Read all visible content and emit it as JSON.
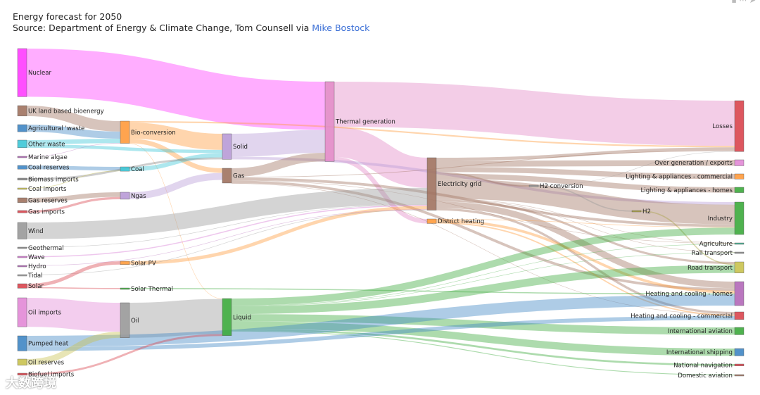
{
  "header": {
    "title": "Energy forecast for 2050",
    "subtitle_prefix": "Source: Department of Energy & Climate Change, Tom Counsell via ",
    "subtitle_link": "Mike Bostock"
  },
  "watermark": "大数跨境",
  "chart_data": {
    "type": "sankey",
    "title": "Energy forecast for 2050",
    "nodes": [
      {
        "name": "Nuclear",
        "color": "#ff3cff"
      },
      {
        "name": "UK land based bioenergy",
        "color": "#a0725f"
      },
      {
        "name": "Agricultural 'waste",
        "color": "#3f86c4"
      },
      {
        "name": "Other waste",
        "color": "#3cc6d6"
      },
      {
        "name": "Marine algae",
        "color": "#b268b8"
      },
      {
        "name": "Coal reserves",
        "color": "#3f86c4"
      },
      {
        "name": "Biomass imports",
        "color": "#888888"
      },
      {
        "name": "Coal imports",
        "color": "#c9c24f"
      },
      {
        "name": "Gas reserves",
        "color": "#a0725f"
      },
      {
        "name": "Gas imports",
        "color": "#d9454e"
      },
      {
        "name": "Wind",
        "color": "#999999"
      },
      {
        "name": "Geothermal",
        "color": "#888888"
      },
      {
        "name": "Wave",
        "color": "#d67ad4"
      },
      {
        "name": "Hydro",
        "color": "#b268b8"
      },
      {
        "name": "Tidal",
        "color": "#999999"
      },
      {
        "name": "Solar",
        "color": "#d9454e"
      },
      {
        "name": "Oil imports",
        "color": "#e288d6"
      },
      {
        "name": "Pumped heat",
        "color": "#3f86c4"
      },
      {
        "name": "Oil reserves",
        "color": "#c9c24f"
      },
      {
        "name": "Biofuel imports",
        "color": "#d9454e"
      },
      {
        "name": "Bio-conversion",
        "color": "#ff9a3c"
      },
      {
        "name": "Coal",
        "color": "#3cc6d6"
      },
      {
        "name": "Ngas",
        "color": "#b89ad6"
      },
      {
        "name": "Solar PV",
        "color": "#ff9a3c"
      },
      {
        "name": "Solar Thermal",
        "color": "#3caa3c"
      },
      {
        "name": "Oil",
        "color": "#999999"
      },
      {
        "name": "Solid",
        "color": "#b89ad6"
      },
      {
        "name": "Gas",
        "color": "#a0725f"
      },
      {
        "name": "Liquid",
        "color": "#3caa3c"
      },
      {
        "name": "Thermal generation",
        "color": "#e288c6"
      },
      {
        "name": "Electricity grid",
        "color": "#a0725f"
      },
      {
        "name": "District heating",
        "color": "#ff9a3c"
      },
      {
        "name": "H2 conversion",
        "color": "#999999"
      },
      {
        "name": "H2",
        "color": "#a8a040"
      },
      {
        "name": "Losses",
        "color": "#d9454e"
      },
      {
        "name": "Over generation / exports",
        "color": "#e288d6"
      },
      {
        "name": "Lighting & appliances - commercial",
        "color": "#ff9a3c"
      },
      {
        "name": "Lighting & appliances - homes",
        "color": "#3caa3c"
      },
      {
        "name": "Industry",
        "color": "#3caa3c"
      },
      {
        "name": "Agriculture",
        "color": "#3caa8a"
      },
      {
        "name": "Rail transport",
        "color": "#888888"
      },
      {
        "name": "Road transport",
        "color": "#c9c24f"
      },
      {
        "name": "Heating and cooling - homes",
        "color": "#b268b8"
      },
      {
        "name": "Heating and cooling - commercial",
        "color": "#d9454e"
      },
      {
        "name": "International aviation",
        "color": "#3caa3c"
      },
      {
        "name": "International shipping",
        "color": "#3f86c4"
      },
      {
        "name": "National navigation",
        "color": "#d9454e"
      },
      {
        "name": "Domestic aviation",
        "color": "#a0725f"
      }
    ],
    "links": [
      {
        "source": "Nuclear",
        "target": "Thermal generation",
        "value": 839
      },
      {
        "source": "UK land based bioenergy",
        "target": "Bio-conversion",
        "value": 182
      },
      {
        "source": "Agricultural 'waste",
        "target": "Bio-conversion",
        "value": 124
      },
      {
        "source": "Other waste",
        "target": "Bio-conversion",
        "value": 77
      },
      {
        "source": "Other waste",
        "target": "Solid",
        "value": 56
      },
      {
        "source": "Marine algae",
        "target": "Bio-conversion",
        "value": 4
      },
      {
        "source": "Coal reserves",
        "target": "Coal",
        "value": 64
      },
      {
        "source": "Biomass imports",
        "target": "Solid",
        "value": 35
      },
      {
        "source": "Coal imports",
        "target": "Coal",
        "value": 11
      },
      {
        "source": "Gas reserves",
        "target": "Ngas",
        "value": 82
      },
      {
        "source": "Gas imports",
        "target": "Ngas",
        "value": 40
      },
      {
        "source": "Wind",
        "target": "Electricity grid",
        "value": 289
      },
      {
        "source": "Geothermal",
        "target": "Electricity grid",
        "value": 7
      },
      {
        "source": "Wave",
        "target": "Electricity grid",
        "value": 19
      },
      {
        "source": "Hydro",
        "target": "Electricity grid",
        "value": 6
      },
      {
        "source": "Tidal",
        "target": "Electricity grid",
        "value": 9
      },
      {
        "source": "Solar",
        "target": "Solar PV",
        "value": 59
      },
      {
        "source": "Solar",
        "target": "Solar Thermal",
        "value": 19
      },
      {
        "source": "Oil imports",
        "target": "Oil",
        "value": 504
      },
      {
        "source": "Oil reserves",
        "target": "Oil",
        "value": 107
      },
      {
        "source": "Pumped heat",
        "target": "Heating and cooling - homes",
        "value": 193
      },
      {
        "source": "Pumped heat",
        "target": "Heating and cooling - commercial",
        "value": 70
      },
      {
        "source": "Biofuel imports",
        "target": "Liquid",
        "value": 35
      },
      {
        "source": "Bio-conversion",
        "target": "Solid",
        "value": 280
      },
      {
        "source": "Bio-conversion",
        "target": "Gas",
        "value": 81
      },
      {
        "source": "Bio-conversion",
        "target": "Losses",
        "value": 26
      },
      {
        "source": "Bio-conversion",
        "target": "Liquid",
        "value": 0.1
      },
      {
        "source": "Coal",
        "target": "Solid",
        "value": 75
      },
      {
        "source": "Ngas",
        "target": "Gas",
        "value": 122
      },
      {
        "source": "Solar PV",
        "target": "Electricity grid",
        "value": 59
      },
      {
        "source": "Solar Thermal",
        "target": "Heating and cooling - homes",
        "value": 19
      },
      {
        "source": "Oil",
        "target": "Liquid",
        "value": 611
      },
      {
        "source": "Solid",
        "target": "Thermal generation",
        "value": 400
      },
      {
        "source": "Solid",
        "target": "Industry",
        "value": 46
      },
      {
        "source": "Gas",
        "target": "Thermal generation",
        "value": 151
      },
      {
        "source": "Gas",
        "target": "Heating and cooling - homes",
        "value": 46
      },
      {
        "source": "Gas",
        "target": "Heating and cooling - commercial",
        "value": 0.9
      },
      {
        "source": "Gas",
        "target": "Industry",
        "value": 46
      },
      {
        "source": "Gas",
        "target": "Agriculture",
        "value": 2.3
      },
      {
        "source": "Gas",
        "target": "Losses",
        "value": 11
      },
      {
        "source": "Thermal generation",
        "target": "Losses",
        "value": 787
      },
      {
        "source": "Thermal generation",
        "target": "Electricity grid",
        "value": 525
      },
      {
        "source": "Thermal generation",
        "target": "District heating",
        "value": 79
      },
      {
        "source": "Electricity grid",
        "target": "Over generation / exports",
        "value": 104
      },
      {
        "source": "Electricity grid",
        "target": "Heating and cooling - homes",
        "value": 113
      },
      {
        "source": "Electricity grid",
        "target": "H2 conversion",
        "value": 27
      },
      {
        "source": "Electricity grid",
        "target": "Industry",
        "value": 342
      },
      {
        "source": "Electricity grid",
        "target": "Road transport",
        "value": 37
      },
      {
        "source": "Electricity grid",
        "target": "Agriculture",
        "value": 4.4
      },
      {
        "source": "Electricity grid",
        "target": "Heating and cooling - commercial",
        "value": 40
      },
      {
        "source": "Electricity grid",
        "target": "Losses",
        "value": 56
      },
      {
        "source": "Electricity grid",
        "target": "Rail transport",
        "value": 7
      },
      {
        "source": "Electricity grid",
        "target": "Lighting & appliances - commercial",
        "value": 90
      },
      {
        "source": "Electricity grid",
        "target": "Lighting & appliances - homes",
        "value": 93
      },
      {
        "source": "District heating",
        "target": "Industry",
        "value": 10
      },
      {
        "source": "District heating",
        "target": "Heating and cooling - commercial",
        "value": 22
      },
      {
        "source": "District heating",
        "target": "Heating and cooling - homes",
        "value": 46
      },
      {
        "source": "H2 conversion",
        "target": "H2",
        "value": 20
      },
      {
        "source": "H2 conversion",
        "target": "Losses",
        "value": 6
      },
      {
        "source": "H2",
        "target": "Road transport",
        "value": 20
      },
      {
        "source": "Liquid",
        "target": "Industry",
        "value": 121
      },
      {
        "source": "Liquid",
        "target": "Road transport",
        "value": 135
      },
      {
        "source": "Liquid",
        "target": "International aviation",
        "value": 128
      },
      {
        "source": "Liquid",
        "target": "International shipping",
        "value": 128
      },
      {
        "source": "Liquid",
        "target": "Domestic aviation",
        "value": 14
      },
      {
        "source": "Liquid",
        "target": "National navigation",
        "value": 33
      },
      {
        "source": "Liquid",
        "target": "Agriculture",
        "value": 3.6
      },
      {
        "source": "Liquid",
        "target": "Rail transport",
        "value": 4
      }
    ]
  }
}
